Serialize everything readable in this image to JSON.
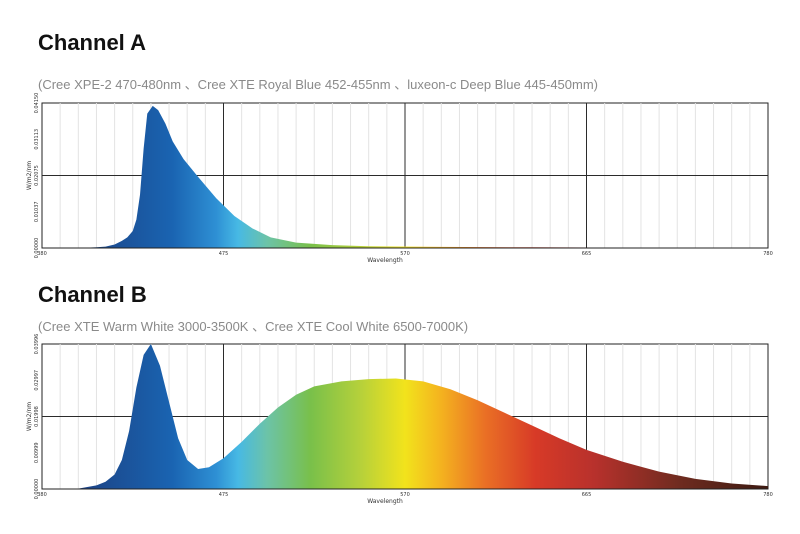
{
  "panels": [
    {
      "title": "Channel A",
      "subtitle": "(Cree  XPE-2 470-480nm 、Cree XTE Royal Blue 452-455nm 、luxeon-c Deep Blue 445-450mm)"
    },
    {
      "title": "Channel B",
      "subtitle": "(Cree XTE Warm White 3000-3500K 、Cree XTE Cool White 6500-7000K)"
    }
  ],
  "chart_data": [
    {
      "type": "area",
      "xlabel": "Wavelength",
      "ylabel": "W/m2/nm",
      "xlim": [
        380,
        780
      ],
      "ylim": [
        0,
        0.0408
      ],
      "x_ticks": [
        "380",
        "475",
        "570",
        "665",
        "780"
      ],
      "y_ticks": [
        "0.00000",
        "0.01037",
        "0.02075",
        "0.03113",
        "0.04150"
      ],
      "grid": true,
      "fill": "spectrum",
      "series": [
        {
          "x": [
            380,
            400,
            410,
            415,
            420,
            424,
            427,
            430,
            432,
            434,
            436,
            438,
            441,
            444,
            448,
            452,
            458,
            466,
            476,
            486,
            496,
            506,
            520,
            540,
            560,
            600,
            650,
            700,
            780
          ],
          "y": [
            0,
            0,
            0.0002,
            0.0004,
            0.001,
            0.002,
            0.003,
            0.0048,
            0.008,
            0.015,
            0.028,
            0.0378,
            0.04,
            0.0388,
            0.035,
            0.03,
            0.025,
            0.02,
            0.014,
            0.009,
            0.0055,
            0.003,
            0.0015,
            0.0008,
            0.0005,
            0.0003,
            0.0002,
            0.0001,
            0
          ]
        }
      ]
    },
    {
      "type": "area",
      "xlabel": "Wavelength",
      "ylabel": "W/m2/nm",
      "xlim": [
        380,
        780
      ],
      "ylim": [
        0,
        0.04
      ],
      "x_ticks": [
        "380",
        "475",
        "570",
        "665",
        "780"
      ],
      "y_ticks": [
        "0.00000",
        "0.00999",
        "0.01998",
        "0.02997",
        "0.03996"
      ],
      "grid": true,
      "fill": "spectrum",
      "series": [
        {
          "x": [
            380,
            400,
            410,
            415,
            420,
            424,
            428,
            432,
            436,
            440,
            445,
            450,
            455,
            460,
            466,
            472,
            480,
            490,
            500,
            510,
            520,
            530,
            545,
            560,
            575,
            590,
            605,
            620,
            635,
            650,
            665,
            680,
            700,
            720,
            740,
            760,
            780
          ],
          "y": [
            0,
            0.0001,
            0.001,
            0.002,
            0.004,
            0.008,
            0.016,
            0.028,
            0.037,
            0.04,
            0.034,
            0.024,
            0.014,
            0.008,
            0.0055,
            0.006,
            0.0085,
            0.013,
            0.018,
            0.0225,
            0.026,
            0.0283,
            0.0297,
            0.0303,
            0.0305,
            0.0297,
            0.0275,
            0.0245,
            0.021,
            0.0175,
            0.014,
            0.0108,
            0.0075,
            0.0048,
            0.0028,
            0.0015,
            0.0008
          ]
        }
      ]
    }
  ]
}
